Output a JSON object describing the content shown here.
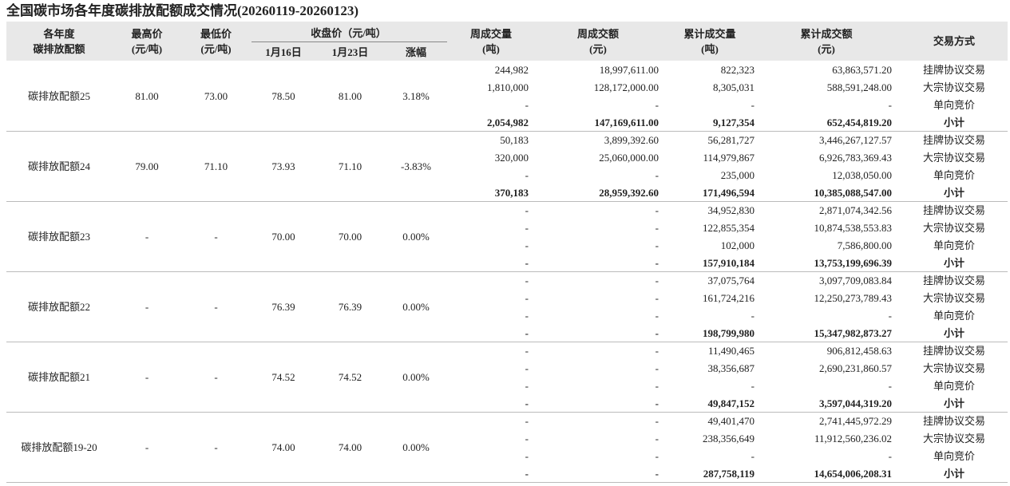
{
  "title": "全国碳市场各年度碳排放配额成交情况(20260119-20260123)",
  "header": {
    "name": [
      "各年度",
      "碳排放配额"
    ],
    "high": [
      "最高价",
      "(元/吨)"
    ],
    "low": [
      "最低价",
      "(元/吨)"
    ],
    "close": "收盘价（元/吨）",
    "close_0116": "1月16日",
    "close_0123": "1月23日",
    "change": "涨幅",
    "week_volume": [
      "周成交量",
      "(吨)"
    ],
    "week_amount": [
      "周成交额",
      "(元)"
    ],
    "cum_volume": [
      "累计成交量",
      "(吨)"
    ],
    "cum_amount": [
      "累计成交额",
      "(元)"
    ],
    "method": "交易方式"
  },
  "groups": [
    {
      "name": "碳排放配额25",
      "high": "81.00",
      "low": "73.00",
      "close_0116": "78.50",
      "close_0123": "81.00",
      "change": "3.18%",
      "rows": [
        [
          "244,982",
          "18,997,611.00",
          "822,323",
          "63,863,571.20",
          "挂牌协议交易"
        ],
        [
          "1,810,000",
          "128,172,000.00",
          "8,305,031",
          "588,591,248.00",
          "大宗协议交易"
        ],
        [
          "-",
          "-",
          "-",
          "-",
          "单向竞价"
        ],
        [
          "2,054,982",
          "147,169,611.00",
          "9,127,354",
          "652,454,819.20",
          "小计"
        ]
      ]
    },
    {
      "name": "碳排放配额24",
      "high": "79.00",
      "low": "71.10",
      "close_0116": "73.93",
      "close_0123": "71.10",
      "change": "-3.83%",
      "rows": [
        [
          "50,183",
          "3,899,392.60",
          "56,281,727",
          "3,446,267,127.57",
          "挂牌协议交易"
        ],
        [
          "320,000",
          "25,060,000.00",
          "114,979,867",
          "6,926,783,369.43",
          "大宗协议交易"
        ],
        [
          "-",
          "-",
          "235,000",
          "12,038,050.00",
          "单向竞价"
        ],
        [
          "370,183",
          "28,959,392.60",
          "171,496,594",
          "10,385,088,547.00",
          "小计"
        ]
      ]
    },
    {
      "name": "碳排放配额23",
      "high": "-",
      "low": "-",
      "close_0116": "70.00",
      "close_0123": "70.00",
      "change": "0.00%",
      "rows": [
        [
          "-",
          "-",
          "34,952,830",
          "2,871,074,342.56",
          "挂牌协议交易"
        ],
        [
          "-",
          "-",
          "122,855,354",
          "10,874,538,553.83",
          "大宗协议交易"
        ],
        [
          "-",
          "-",
          "102,000",
          "7,586,800.00",
          "单向竞价"
        ],
        [
          "-",
          "-",
          "157,910,184",
          "13,753,199,696.39",
          "小计"
        ]
      ]
    },
    {
      "name": "碳排放配额22",
      "high": "-",
      "low": "-",
      "close_0116": "76.39",
      "close_0123": "76.39",
      "change": "0.00%",
      "rows": [
        [
          "-",
          "-",
          "37,075,764",
          "3,097,709,083.84",
          "挂牌协议交易"
        ],
        [
          "-",
          "-",
          "161,724,216",
          "12,250,273,789.43",
          "大宗协议交易"
        ],
        [
          "-",
          "-",
          "-",
          "-",
          "单向竞价"
        ],
        [
          "-",
          "-",
          "198,799,980",
          "15,347,982,873.27",
          "小计"
        ]
      ]
    },
    {
      "name": "碳排放配额21",
      "high": "-",
      "low": "-",
      "close_0116": "74.52",
      "close_0123": "74.52",
      "change": "0.00%",
      "rows": [
        [
          "-",
          "-",
          "11,490,465",
          "906,812,458.63",
          "挂牌协议交易"
        ],
        [
          "-",
          "-",
          "38,356,687",
          "2,690,231,860.57",
          "大宗协议交易"
        ],
        [
          "-",
          "-",
          "-",
          "-",
          "单向竞价"
        ],
        [
          "-",
          "-",
          "49,847,152",
          "3,597,044,319.20",
          "小计"
        ]
      ]
    },
    {
      "name": "碳排放配额19-20",
      "high": "-",
      "low": "-",
      "close_0116": "74.00",
      "close_0123": "74.00",
      "change": "0.00%",
      "rows": [
        [
          "-",
          "-",
          "49,401,470",
          "2,741,445,972.29",
          "挂牌协议交易"
        ],
        [
          "-",
          "-",
          "238,356,649",
          "11,912,560,236.02",
          "大宗协议交易"
        ],
        [
          "-",
          "-",
          "-",
          "-",
          "单向竞价"
        ],
        [
          "-",
          "-",
          "287,758,119",
          "14,654,006,208.31",
          "小计"
        ]
      ]
    }
  ]
}
